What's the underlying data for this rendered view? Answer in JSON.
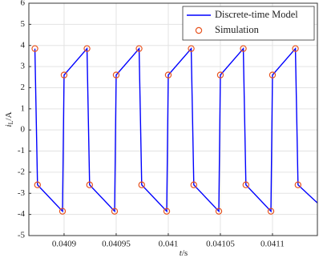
{
  "chart_data": {
    "type": "line",
    "xlabel": {
      "symbol": "t",
      "unit": "/s"
    },
    "ylabel": {
      "symbol": "i",
      "subscript": "L",
      "unit": "/A"
    },
    "xlim": [
      0.0408662,
      0.0411431
    ],
    "ylim": [
      -5,
      6
    ],
    "xticks": [
      0.0409,
      0.04095,
      0.041,
      0.04105,
      0.0411
    ],
    "yticks": [
      -5,
      -4,
      -3,
      -2,
      -1,
      0,
      1,
      2,
      3,
      4,
      5,
      6
    ],
    "grid": true,
    "legend": "upper right",
    "series": [
      {
        "name": "Discrete-time Model",
        "color": "#0000ff",
        "style": "line",
        "x": [
          0.040872,
          0.0408745,
          0.0408985,
          0.0409,
          0.040922,
          0.0409245,
          0.0409485,
          0.04095,
          0.040972,
          0.0409745,
          0.0409985,
          0.041,
          0.041022,
          0.0410245,
          0.0410485,
          0.04105,
          0.041072,
          0.0410745,
          0.0410985,
          0.0411,
          0.041122,
          0.0411245,
          0.041143
        ],
        "values": [
          3.85,
          -2.6,
          -3.85,
          2.6,
          3.85,
          -2.6,
          -3.85,
          2.6,
          3.85,
          -2.6,
          -3.85,
          2.6,
          3.85,
          -2.6,
          -3.85,
          2.6,
          3.85,
          -2.6,
          -3.85,
          2.6,
          3.85,
          -2.6,
          -3.45
        ]
      },
      {
        "name": "Simulation",
        "color": "#e8531f",
        "style": "marker",
        "x": [
          0.040872,
          0.0408745,
          0.0408985,
          0.0409,
          0.040922,
          0.0409245,
          0.0409485,
          0.04095,
          0.040972,
          0.0409745,
          0.0409985,
          0.041,
          0.041022,
          0.0410245,
          0.0410485,
          0.04105,
          0.041072,
          0.0410745,
          0.0410985,
          0.0411,
          0.041122,
          0.0411245
        ],
        "values": [
          3.85,
          -2.6,
          -3.85,
          2.6,
          3.85,
          -2.6,
          -3.85,
          2.6,
          3.85,
          -2.6,
          -3.85,
          2.6,
          3.85,
          -2.6,
          -3.85,
          2.6,
          3.85,
          -2.6,
          -3.85,
          2.6,
          3.85,
          -2.6
        ]
      }
    ]
  }
}
